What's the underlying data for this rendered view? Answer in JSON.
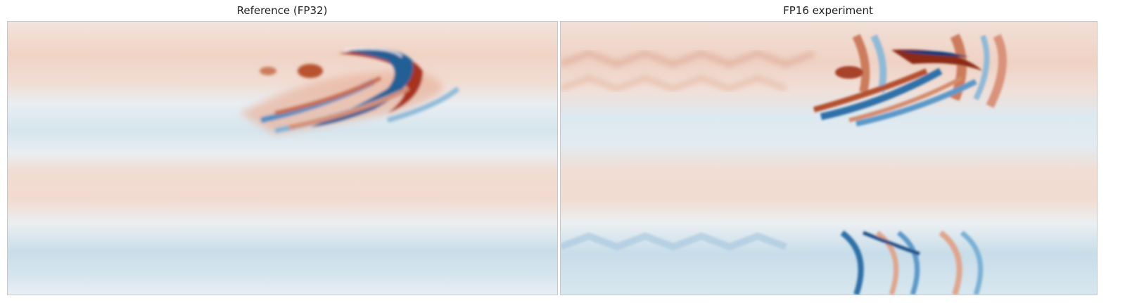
{
  "chart_data": [
    {
      "type": "heatmap",
      "title": "Reference (FP32)",
      "colormap": "diverging red-blue",
      "colors": {
        "positive": "#b2182b",
        "negative": "#2166ac",
        "neutral": "#f2f2f2"
      },
      "ticks": "none",
      "colorbar": false
    },
    {
      "type": "heatmap",
      "title": "FP16 experiment",
      "colormap": "diverging red-blue",
      "colors": {
        "positive": "#b2182b",
        "negative": "#2166ac",
        "neutral": "#f2f2f2"
      },
      "ticks": "none",
      "colorbar": false
    }
  ]
}
